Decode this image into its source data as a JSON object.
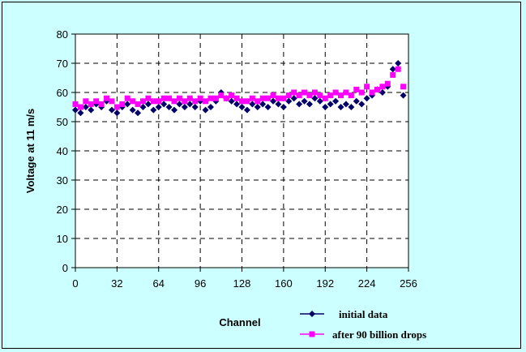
{
  "chart_data": {
    "type": "scatter",
    "title": "",
    "xlabel": "Channel",
    "ylabel": "Voltage at 11 m/s",
    "xlim": [
      0,
      256
    ],
    "ylim": [
      0,
      80
    ],
    "xticks": [
      0,
      32,
      64,
      96,
      128,
      160,
      192,
      224,
      256
    ],
    "yticks": [
      0,
      10,
      20,
      30,
      40,
      50,
      60,
      70,
      80
    ],
    "grid": "dashed",
    "legend_position": "bottom-right",
    "series": [
      {
        "name": "initial data",
        "color": "#000066",
        "marker": "diamond",
        "x": [
          0,
          4,
          8,
          12,
          16,
          20,
          24,
          28,
          32,
          36,
          40,
          44,
          48,
          52,
          56,
          60,
          64,
          68,
          72,
          76,
          80,
          84,
          88,
          92,
          96,
          100,
          104,
          108,
          112,
          116,
          120,
          124,
          128,
          132,
          136,
          140,
          144,
          148,
          152,
          156,
          160,
          164,
          168,
          172,
          176,
          180,
          184,
          188,
          192,
          196,
          200,
          204,
          208,
          212,
          216,
          220,
          224,
          228,
          232,
          236,
          240,
          244,
          248,
          252
        ],
        "y": [
          54,
          53,
          55,
          54,
          56,
          55,
          57,
          54,
          53,
          55,
          56,
          54,
          53,
          55,
          56,
          54,
          55,
          56,
          55,
          54,
          56,
          55,
          56,
          55,
          57,
          54,
          55,
          57,
          60,
          58,
          57,
          56,
          55,
          54,
          56,
          55,
          56,
          55,
          57,
          56,
          55,
          57,
          58,
          56,
          57,
          56,
          58,
          57,
          55,
          56,
          57,
          55,
          56,
          55,
          57,
          56,
          58,
          59,
          61,
          60,
          62,
          68,
          70,
          59
        ]
      },
      {
        "name": "after 90 billion drops",
        "color": "#ff00ff",
        "marker": "square",
        "x": [
          0,
          4,
          8,
          12,
          16,
          20,
          24,
          28,
          32,
          36,
          40,
          44,
          48,
          52,
          56,
          60,
          64,
          68,
          72,
          76,
          80,
          84,
          88,
          92,
          96,
          100,
          104,
          108,
          112,
          116,
          120,
          124,
          128,
          132,
          136,
          140,
          144,
          148,
          152,
          156,
          160,
          164,
          168,
          172,
          176,
          180,
          184,
          188,
          192,
          196,
          200,
          204,
          208,
          212,
          216,
          220,
          224,
          228,
          232,
          236,
          240,
          244,
          248,
          252
        ],
        "y": [
          56,
          55,
          57,
          56,
          57,
          56,
          58,
          57,
          55,
          56,
          58,
          57,
          56,
          57,
          58,
          57,
          57,
          58,
          58,
          57,
          58,
          57,
          58,
          57,
          58,
          57,
          58,
          58,
          59,
          58,
          59,
          58,
          57,
          57,
          58,
          57,
          58,
          58,
          59,
          58,
          58,
          59,
          60,
          59,
          60,
          59,
          60,
          59,
          58,
          59,
          60,
          59,
          60,
          59,
          61,
          60,
          62,
          60,
          61,
          62,
          63,
          66,
          68,
          62
        ]
      }
    ]
  }
}
